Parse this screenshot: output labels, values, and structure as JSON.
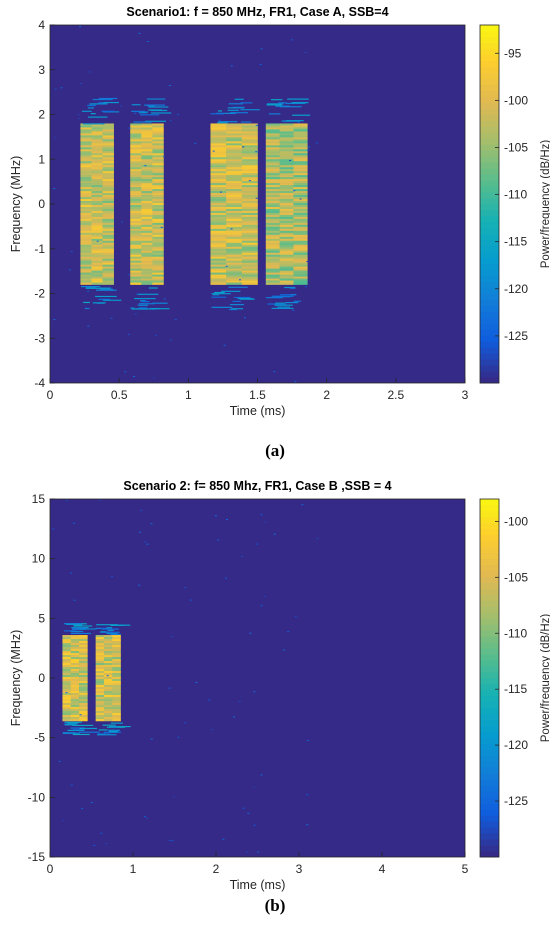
{
  "chart_data": [
    {
      "type": "heatmap",
      "title": "Scenario1: f = 850 MHz, FR1, Case A, SSB=4",
      "xlabel": "Time (ms)",
      "ylabel": "Frequency (MHz)",
      "colorbar_label": "Power/frequency (dB/Hz)",
      "xlim": [
        0,
        3
      ],
      "ylim": [
        -4,
        4
      ],
      "clim": [
        -130,
        -92
      ],
      "xticks": [
        "0",
        "0.5",
        "1",
        "1.5",
        "2",
        "2.5",
        "3"
      ],
      "yticks": [
        "-4",
        "-3",
        "-2",
        "-1",
        "0",
        "1",
        "2",
        "3",
        "4"
      ],
      "cticks": [
        "-125",
        "-120",
        "-115",
        "-110",
        "-105",
        "-100",
        "-95"
      ],
      "background_db": -130,
      "bursts": [
        {
          "t_start": 0.22,
          "t_end": 0.46,
          "f_low": -1.8,
          "f_high": 1.8,
          "peak_db": -95
        },
        {
          "t_start": 0.58,
          "t_end": 0.82,
          "f_low": -1.8,
          "f_high": 1.8,
          "peak_db": -95
        },
        {
          "t_start": 1.16,
          "t_end": 1.5,
          "f_low": -1.8,
          "f_high": 1.8,
          "peak_db": -95
        },
        {
          "t_start": 1.56,
          "t_end": 1.86,
          "f_low": -1.8,
          "f_high": 1.8,
          "peak_db": -97
        }
      ],
      "caption": "(a)"
    },
    {
      "type": "heatmap",
      "title": "Scenario 2: f= 850 Mhz, FR1, Case B ,SSB = 4",
      "xlabel": "Time (ms)",
      "ylabel": "Frequency (MHz)",
      "colorbar_label": "Power/frequency (dB/Hz)",
      "xlim": [
        0,
        5
      ],
      "ylim": [
        -15,
        15
      ],
      "clim": [
        -130,
        -98
      ],
      "xticks": [
        "0",
        "1",
        "2",
        "3",
        "4",
        "5"
      ],
      "yticks": [
        "-15",
        "-10",
        "-5",
        "0",
        "5",
        "10",
        "15"
      ],
      "cticks": [
        "-125",
        "-120",
        "-115",
        "-110",
        "-105",
        "-100"
      ],
      "background_db": -130,
      "bursts": [
        {
          "t_start": 0.15,
          "t_end": 0.45,
          "f_low": -3.6,
          "f_high": 3.6,
          "peak_db": -100
        },
        {
          "t_start": 0.55,
          "t_end": 0.85,
          "f_low": -3.6,
          "f_high": 3.6,
          "peak_db": -100
        }
      ],
      "caption": "(b)"
    }
  ]
}
